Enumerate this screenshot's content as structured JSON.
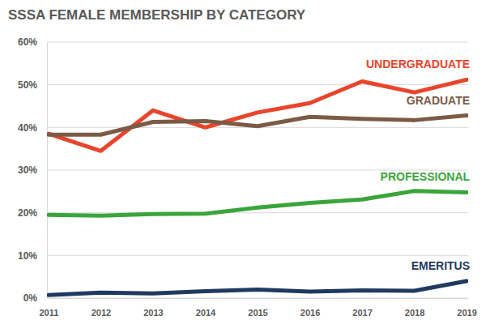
{
  "chart_data": {
    "type": "line",
    "title": "SSSA FEMALE MEMBERSHIP BY CATEGORY",
    "categories": [
      "2011",
      "2012",
      "2013",
      "2014",
      "2015",
      "2016",
      "2017",
      "2018",
      "2019"
    ],
    "series": [
      {
        "name": "UNDERGRADUATE",
        "color": "#e8452c",
        "values": [
          38.5,
          34.5,
          44,
          40,
          43.5,
          45.7,
          50.8,
          48.2,
          51.2
        ]
      },
      {
        "name": "GRADUATE",
        "color": "#7b5b45",
        "values": [
          38.3,
          38.3,
          41.3,
          41.5,
          40.3,
          42.5,
          42,
          41.7,
          42.8
        ]
      },
      {
        "name": "PROFESSIONAL",
        "color": "#3aa53a",
        "values": [
          19.5,
          19.3,
          19.7,
          19.8,
          21.2,
          22.3,
          23.1,
          25.1,
          24.8
        ]
      },
      {
        "name": "EMERITUS",
        "color": "#1f3a5f",
        "values": [
          0.7,
          1.3,
          1.1,
          1.6,
          2.0,
          1.5,
          1.8,
          1.7,
          4.0
        ]
      }
    ],
    "ylim": [
      0,
      60
    ],
    "yticks": [
      {
        "value": 0,
        "label": "0%"
      },
      {
        "value": 10,
        "label": "10%"
      },
      {
        "value": 20,
        "label": "20%"
      },
      {
        "value": 30,
        "label": "30%"
      },
      {
        "value": 40,
        "label": "40%"
      },
      {
        "value": 50,
        "label": "50%"
      },
      {
        "value": 60,
        "label": "60%"
      }
    ],
    "grid": true
  }
}
